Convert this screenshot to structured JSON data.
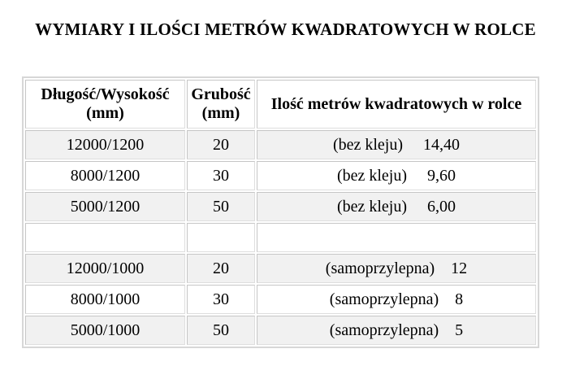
{
  "page": {
    "title": "WYMIARY I ILOŚCI METRÓW KWADRATOWYCH W ROLCE"
  },
  "table": {
    "headers": [
      "Długość/Wysokość (mm)",
      "Grubość (mm)",
      "Ilość metrów kwadratowych w rolce"
    ],
    "rows": [
      {
        "cells": [
          "12000/1200",
          "20",
          "(bez kleju)     14,40"
        ]
      },
      {
        "cells": [
          "8000/1200",
          "30",
          "(bez kleju)     9,60"
        ]
      },
      {
        "cells": [
          "5000/1200",
          "50",
          "(bez kleju)     6,00"
        ]
      },
      {
        "cells": [
          "",
          "",
          ""
        ]
      },
      {
        "cells": [
          "12000/1000",
          "20",
          "(samoprzylepna)    12"
        ]
      },
      {
        "cells": [
          "8000/1000",
          "30",
          "(samoprzylepna)    8"
        ]
      },
      {
        "cells": [
          "5000/1000",
          "50",
          "(samoprzylepna)    5"
        ]
      }
    ],
    "colors": {
      "zebra_row_bg": "#f1f1f1",
      "cell_border": "#c6c6c6",
      "table_border": "#d7d7d7",
      "text": "#000000"
    }
  }
}
